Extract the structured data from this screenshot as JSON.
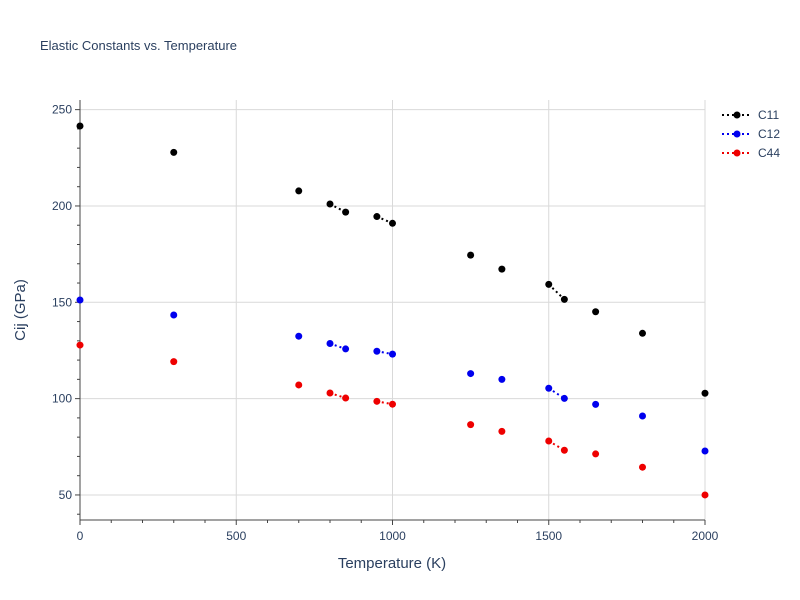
{
  "chart_data": {
    "type": "scatter",
    "title": "Elastic Constants vs. Temperature",
    "xlabel": "Temperature (K)",
    "ylabel": "Cij (GPa)",
    "xlim": [
      0,
      2000
    ],
    "ylim": [
      37,
      255
    ],
    "x_ticks": [
      0,
      500,
      1000,
      1500,
      2000
    ],
    "x_tick_labels": [
      "0",
      "500",
      "1000",
      "1500",
      "2000"
    ],
    "y_ticks": [
      50,
      100,
      150,
      200,
      250
    ],
    "y_tick_labels": [
      "50",
      "100",
      "150",
      "200",
      "250"
    ],
    "grid": true,
    "legend_position": "top-right",
    "series": [
      {
        "name": "C11",
        "color": "#000000",
        "x": [
          0,
          300,
          700,
          800,
          850,
          950,
          1000,
          1250,
          1350,
          1500,
          1550,
          1650,
          1800,
          2000
        ],
        "y": [
          241.5,
          227.8,
          207.8,
          201.0,
          196.8,
          194.5,
          191.0,
          174.5,
          167.2,
          159.3,
          151.5,
          145.1,
          133.9,
          102.8
        ],
        "connected_segments": [
          [
            3,
            4
          ],
          [
            5,
            6
          ],
          [
            9,
            10
          ]
        ]
      },
      {
        "name": "C12",
        "color": "#0000ee",
        "x": [
          0,
          300,
          700,
          800,
          850,
          950,
          1000,
          1250,
          1350,
          1500,
          1550,
          1650,
          1800,
          2000
        ],
        "y": [
          151.2,
          143.4,
          132.4,
          128.6,
          125.8,
          124.6,
          123.1,
          113.0,
          110.0,
          105.4,
          100.1,
          97.0,
          91.0,
          72.8
        ],
        "connected_segments": [
          [
            3,
            4
          ],
          [
            5,
            6
          ],
          [
            9,
            10
          ]
        ]
      },
      {
        "name": "C44",
        "color": "#ee0000",
        "x": [
          0,
          300,
          700,
          800,
          850,
          950,
          1000,
          1250,
          1350,
          1500,
          1550,
          1650,
          1800,
          2000
        ],
        "y": [
          127.8,
          119.2,
          107.1,
          102.9,
          100.3,
          98.6,
          97.1,
          86.5,
          83.0,
          78.0,
          73.2,
          71.3,
          64.4,
          50.0
        ],
        "connected_segments": [
          [
            3,
            4
          ],
          [
            5,
            6
          ],
          [
            9,
            10
          ]
        ]
      }
    ]
  }
}
